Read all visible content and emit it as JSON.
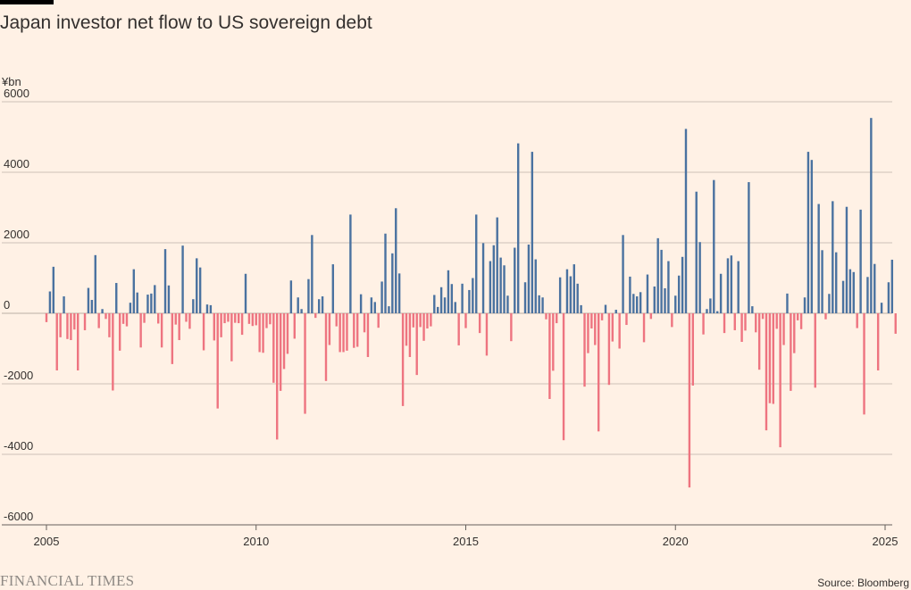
{
  "header": {
    "title": "Japan investor net flow to US sovereign debt"
  },
  "footer": {
    "source": "Source: Bloomberg",
    "logo": "FINANCIAL TIMES"
  },
  "colors": {
    "positive": "#4a72a0",
    "negative": "#ee7480",
    "grid": "#ccc1b7",
    "axis": "#66605c",
    "text": "#33302e"
  },
  "chart_data": {
    "type": "bar",
    "title": "Japan investor net flow to US sovereign debt",
    "unit_label": "¥bn",
    "ylim": [
      -6000,
      6000
    ],
    "y_ticks": [
      "6000",
      "4000",
      "2000",
      "0",
      "-2000",
      "-4000",
      "-6000"
    ],
    "y_tick_values": [
      6000,
      4000,
      2000,
      0,
      -2000,
      -4000,
      -6000
    ],
    "x_ticks": [
      "2005",
      "2010",
      "2015",
      "2020",
      "2025"
    ],
    "x_tick_values": [
      2005,
      2010,
      2015,
      2020,
      2025
    ],
    "frequency": "monthly",
    "start": "2005-01",
    "grid": true,
    "values": [
      -250,
      620,
      1320,
      -1620,
      -680,
      480,
      -730,
      -760,
      -460,
      -1620,
      0,
      -480,
      720,
      380,
      1650,
      -420,
      120,
      -160,
      -680,
      -2190,
      860,
      -1060,
      -300,
      -370,
      300,
      1250,
      590,
      -970,
      -270,
      530,
      560,
      800,
      -290,
      -970,
      1820,
      790,
      -1440,
      -320,
      -760,
      1920,
      -240,
      -440,
      400,
      1560,
      1300,
      -1050,
      250,
      230,
      -770,
      -2700,
      -680,
      -280,
      -240,
      -1360,
      -270,
      -280,
      -610,
      1120,
      -300,
      -360,
      -340,
      -1100,
      -1120,
      -420,
      -310,
      -1970,
      -3580,
      -2200,
      -1580,
      -1150,
      930,
      -720,
      450,
      120,
      -2850,
      970,
      2220,
      -130,
      400,
      480,
      -1920,
      -900,
      1390,
      -370,
      -1100,
      -1100,
      -1060,
      2800,
      -980,
      -950,
      540,
      -540,
      -1240,
      450,
      320,
      -410,
      900,
      2260,
      200,
      1700,
      2980,
      1130,
      -2630,
      -920,
      -1240,
      -400,
      -1750,
      -390,
      -780,
      -430,
      -370,
      520,
      180,
      740,
      450,
      1220,
      830,
      320,
      -910,
      840,
      -420,
      660,
      1000,
      2800,
      -560,
      1990,
      -1200,
      1480,
      1930,
      2720,
      1580,
      1360,
      500,
      -790,
      1860,
      4820,
      0,
      880,
      1950,
      4580,
      1530,
      510,
      450,
      -170,
      -2430,
      -1630,
      -280,
      1020,
      -3600,
      1250,
      1050,
      1390,
      840,
      230,
      -2080,
      -1130,
      -430,
      -900,
      -3350,
      -200,
      240,
      -2030,
      -800,
      100,
      -1000,
      2220,
      -330,
      1040,
      550,
      480,
      600,
      -820,
      1100,
      -160,
      760,
      2130,
      1800,
      710,
      1480,
      -390,
      500,
      1070,
      1600,
      5230,
      -4940,
      -2050,
      3450,
      2020,
      -600,
      120,
      420,
      3780,
      60,
      1120,
      -560,
      1560,
      1640,
      -480,
      1480,
      -810,
      -490,
      3720,
      200,
      -540,
      -1600,
      -160,
      -3320,
      -2550,
      -2570,
      -440,
      -3800,
      -900,
      560,
      -2200,
      -1130,
      -200,
      -450,
      450,
      4580,
      4350,
      -2110,
      3100,
      1790,
      -170,
      550,
      3180,
      1730,
      0,
      920,
      3020,
      1250,
      1170,
      -420,
      2940,
      -2870,
      1030,
      5540,
      1400,
      -1620,
      300,
      0,
      880,
      1520,
      -580
    ]
  }
}
